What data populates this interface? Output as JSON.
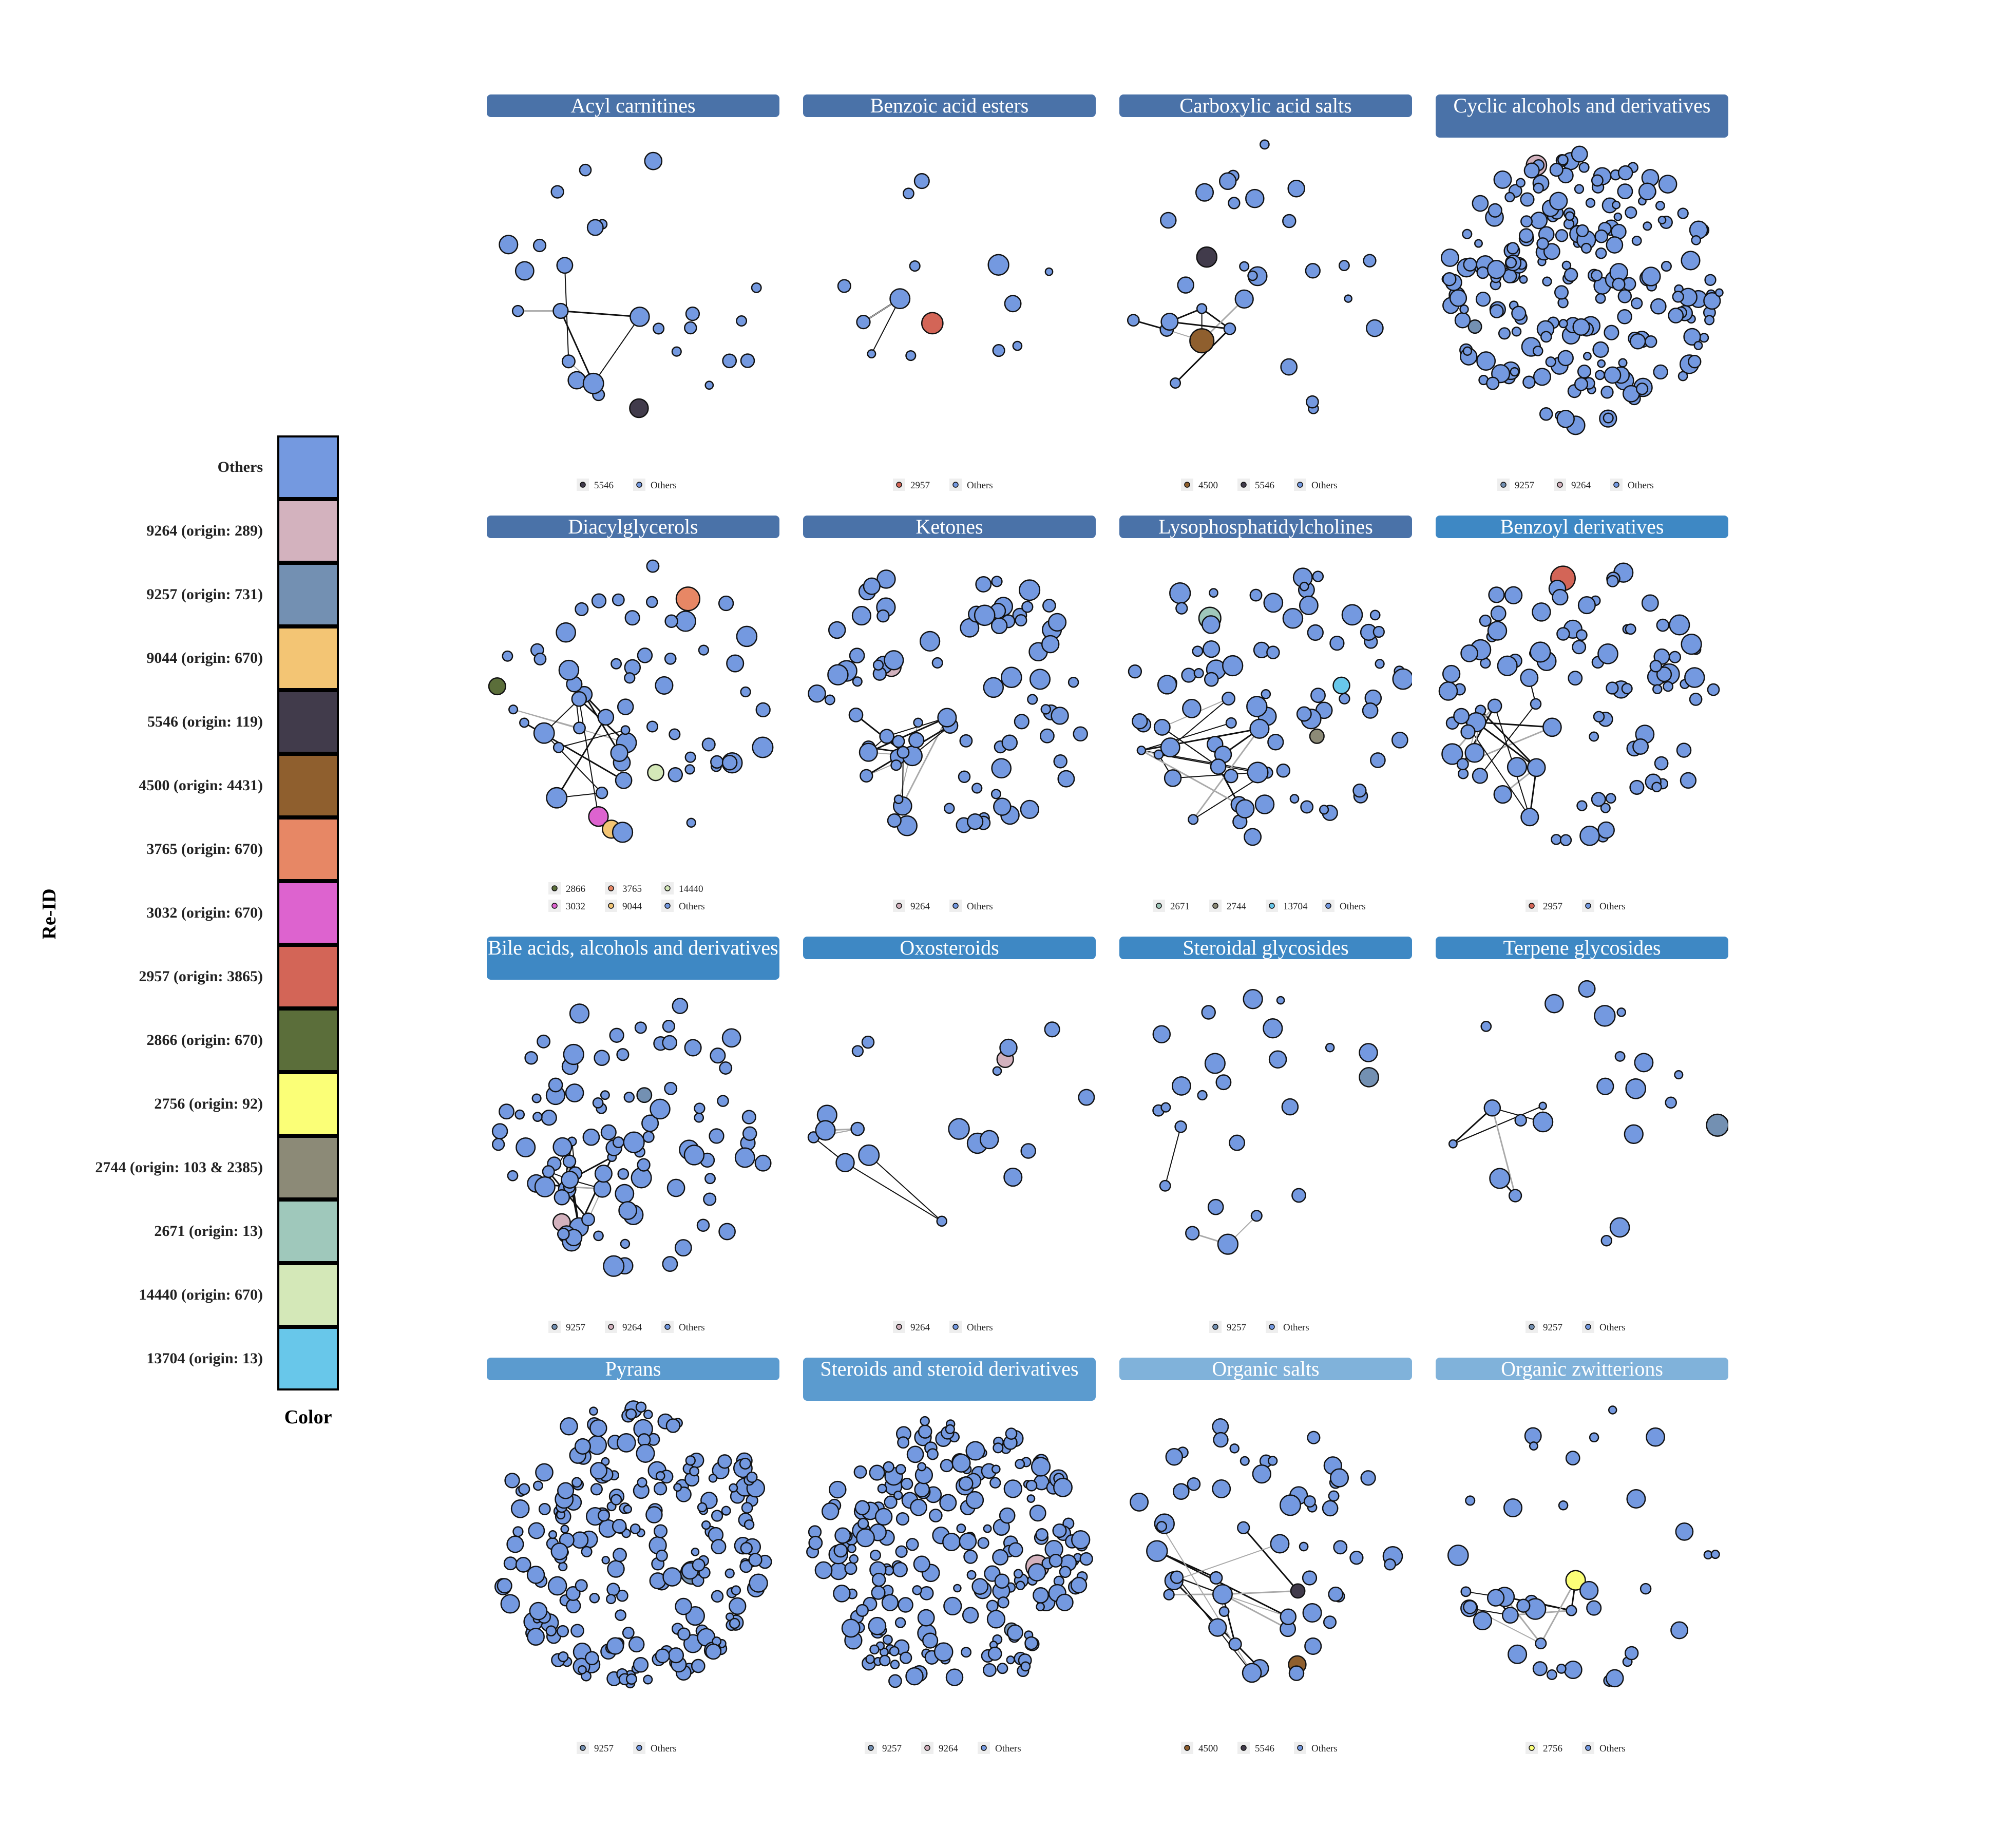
{
  "legend": {
    "title": "Re-ID",
    "color_title": "Color",
    "items": [
      {
        "label": "Others",
        "color": "#7499E0"
      },
      {
        "label": "9264 (origin: 289)",
        "color": "#D3B2BE"
      },
      {
        "label": "9257 (origin: 731)",
        "color": "#7390B2"
      },
      {
        "label": "9044 (origin: 670)",
        "color": "#F3C574"
      },
      {
        "label": "5546 (origin: 119)",
        "color": "#413B4B"
      },
      {
        "label": "4500 (origin: 4431)",
        "color": "#8F5F2E"
      },
      {
        "label": "3765 (origin: 670)",
        "color": "#E78765"
      },
      {
        "label": "3032 (origin: 670)",
        "color": "#DD63CF"
      },
      {
        "label": "2957 (origin: 3865)",
        "color": "#D36557"
      },
      {
        "label": "2866 (origin: 670)",
        "color": "#5B6E3A"
      },
      {
        "label": "2756 (origin: 92)",
        "color": "#FBFF77"
      },
      {
        "label": "2744 (origin: 103 & 2385)",
        "color": "#8C8A77"
      },
      {
        "label": "2671 (origin: 13)",
        "color": "#9FC8BB"
      },
      {
        "label": "14440 (origin: 670)",
        "color": "#D4E8B8"
      },
      {
        "label": "13704 (origin: 13)",
        "color": "#68C7EA"
      }
    ]
  },
  "panels": [
    {
      "title": "Acyl carnitines",
      "strip_color": "#4A72A8",
      "nodes": 26,
      "layout": "sparse",
      "highlights": [
        "5546"
      ],
      "legend": [
        "5546",
        "Others"
      ]
    },
    {
      "title": "Benzoic acid esters",
      "strip_color": "#4A72A8",
      "nodes": 14,
      "layout": "sparse",
      "highlights": [
        "2957"
      ],
      "legend": [
        "2957",
        "Others"
      ]
    },
    {
      "title": "Carboxylic acid salts",
      "strip_color": "#4A72A8",
      "nodes": 30,
      "layout": "sparse",
      "highlights": [
        "4500",
        "5546"
      ],
      "legend": [
        "4500",
        "5546",
        "Others"
      ]
    },
    {
      "title": "Cyclic alcohols and derivatives",
      "strip_color": "#4A72A8",
      "nodes": 220,
      "layout": "dense",
      "highlights": [
        "9257",
        "9264"
      ],
      "legend": [
        "9257",
        "9264",
        "Others"
      ]
    },
    {
      "title": "Diacylglycerols",
      "strip_color": "#4A72A8",
      "nodes": 60,
      "layout": "medium",
      "highlights": [
        "2866",
        "3765",
        "14440",
        "3032",
        "9044"
      ],
      "legend": [
        "2866",
        "3765",
        "14440",
        "3032",
        "9044",
        "Others"
      ]
    },
    {
      "title": "Ketones",
      "strip_color": "#4A72A8",
      "nodes": 85,
      "layout": "medium",
      "highlights": [
        "9264"
      ],
      "legend": [
        "9264",
        "Others"
      ]
    },
    {
      "title": "Lysophosphatidylcholines",
      "strip_color": "#4A72A8",
      "nodes": 80,
      "layout": "medium",
      "highlights": [
        "2671",
        "2744",
        "13704"
      ],
      "legend": [
        "2671",
        "2744",
        "13704",
        "Others"
      ]
    },
    {
      "title": "Benzoyl derivatives",
      "strip_color": "#3E88C4",
      "nodes": 95,
      "layout": "medium",
      "highlights": [
        "2957"
      ],
      "legend": [
        "2957",
        "Others"
      ]
    },
    {
      "title": "Bile acids, alcohols and derivatives",
      "strip_color": "#3E88C4",
      "nodes": 95,
      "layout": "medium",
      "highlights": [
        "9257",
        "9264"
      ],
      "legend": [
        "9257",
        "9264",
        "Others"
      ]
    },
    {
      "title": "Oxosteroids",
      "strip_color": "#3E88C4",
      "nodes": 20,
      "layout": "sparse",
      "highlights": [
        "9264"
      ],
      "legend": [
        "9264",
        "Others"
      ]
    },
    {
      "title": "Steroidal glycosides",
      "strip_color": "#3E88C4",
      "nodes": 24,
      "layout": "sparse",
      "highlights": [
        "9257"
      ],
      "legend": [
        "9257",
        "Others"
      ]
    },
    {
      "title": "Terpene glycosides",
      "strip_color": "#3E88C4",
      "nodes": 22,
      "layout": "sparse",
      "highlights": [
        "9257"
      ],
      "legend": [
        "9257",
        "Others"
      ]
    },
    {
      "title": "Pyrans",
      "strip_color": "#5B9BCF",
      "nodes": 230,
      "layout": "dense",
      "highlights": [
        "9257"
      ],
      "legend": [
        "9257",
        "Others"
      ]
    },
    {
      "title": "Steroids and steroid derivatives",
      "strip_color": "#5B9BCF",
      "nodes": 230,
      "layout": "dense",
      "highlights": [
        "9257",
        "9264"
      ],
      "legend": [
        "9257",
        "9264",
        "Others"
      ]
    },
    {
      "title": "Organic salts",
      "strip_color": "#80B2DA",
      "nodes": 55,
      "layout": "medium",
      "highlights": [
        "4500",
        "5546"
      ],
      "legend": [
        "4500",
        "5546",
        "Others"
      ]
    },
    {
      "title": "Organic zwitterions",
      "strip_color": "#80B2DA",
      "nodes": 40,
      "layout": "sparse",
      "highlights": [
        "2756"
      ],
      "legend": [
        "2756",
        "Others"
      ]
    }
  ]
}
